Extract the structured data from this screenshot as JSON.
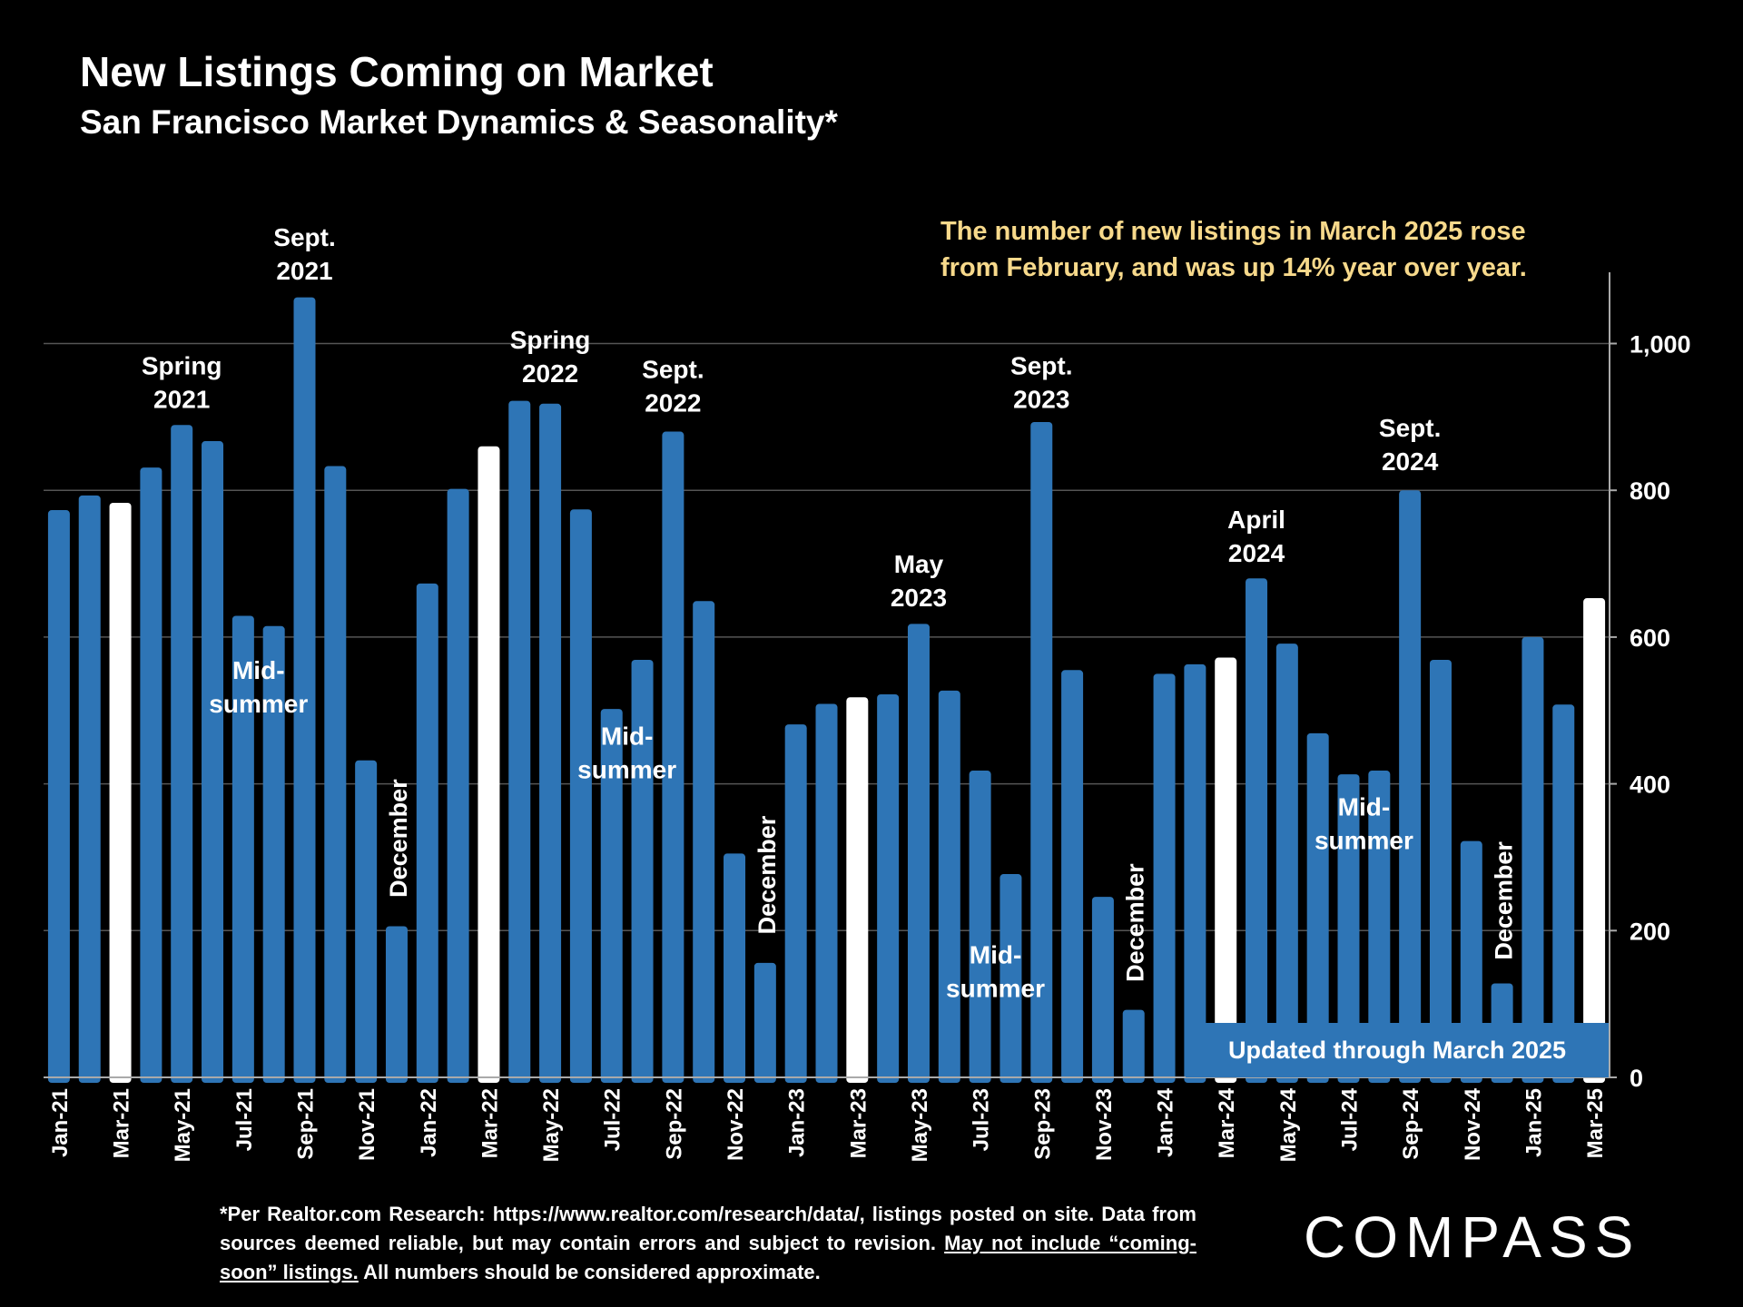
{
  "header": {
    "title": "New Listings Coming on Market",
    "subtitle": "San Francisco Market Dynamics & Seasonality*"
  },
  "footnote": {
    "part1": "*Per Realtor.com Research:  https://www.realtor.com/research/data/, listings posted on site. Data from sources deemed reliable, but may contain errors and subject to revision. ",
    "underlined": "May not include “coming-soon” listings.",
    "part2": " All numbers should be considered approximate."
  },
  "logo": "COMPASS",
  "colors": {
    "bar": "#2e75b6",
    "highlight_bar": "#ffffff",
    "callout_text": "#f7d98b",
    "grid": "#555555",
    "badge": "#2e75b6"
  },
  "chart_data": {
    "type": "bar",
    "categories": [
      "Jan-21",
      "Feb-21",
      "Mar-21",
      "Apr-21",
      "May-21",
      "Jun-21",
      "Jul-21",
      "Aug-21",
      "Sep-21",
      "Oct-21",
      "Nov-21",
      "Dec-21",
      "Jan-22",
      "Feb-22",
      "Mar-22",
      "Apr-22",
      "May-22",
      "Jun-22",
      "Jul-22",
      "Aug-22",
      "Sep-22",
      "Oct-22",
      "Nov-22",
      "Dec-22",
      "Jan-23",
      "Feb-23",
      "Mar-23",
      "Apr-23",
      "May-23",
      "Jun-23",
      "Jul-23",
      "Aug-23",
      "Sep-23",
      "Oct-23",
      "Nov-23",
      "Dec-23",
      "Jan-24",
      "Feb-24",
      "Mar-24",
      "Apr-24",
      "May-24",
      "Jun-24",
      "Jul-24",
      "Aug-24",
      "Sep-24",
      "Oct-24",
      "Nov-24",
      "Dec-24",
      "Jan-25",
      "Feb-25",
      "Mar-25"
    ],
    "values": [
      773,
      793,
      783,
      831,
      889,
      867,
      629,
      615,
      1063,
      833,
      432,
      206,
      673,
      802,
      860,
      922,
      918,
      774,
      502,
      569,
      880,
      649,
      305,
      156,
      481,
      509,
      518,
      522,
      618,
      527,
      418,
      277,
      893,
      555,
      246,
      92,
      550,
      563,
      572,
      680,
      591,
      469,
      413,
      418,
      800,
      569,
      322,
      128,
      600,
      508,
      653
    ],
    "highlight_indices": [
      2,
      14,
      26,
      38,
      50
    ],
    "tick_labels": [
      "Jan-21",
      "Mar-21",
      "May-21",
      "Jul-21",
      "Sep-21",
      "Nov-21",
      "Jan-22",
      "Mar-22",
      "May-22",
      "Jul-22",
      "Sep-22",
      "Nov-22",
      "Jan-23",
      "Mar-23",
      "May-23",
      "Jul-23",
      "Sep-23",
      "Nov-23",
      "Jan-24",
      "Mar-24",
      "May-24",
      "Jul-24",
      "Sep-24",
      "Nov-24",
      "Jan-25",
      "Mar-25"
    ],
    "y_ticks": [
      {
        "value": 0,
        "label": "0"
      },
      {
        "value": 200,
        "label": "200"
      },
      {
        "value": 400,
        "label": "400"
      },
      {
        "value": 600,
        "label": "600"
      },
      {
        "value": 800,
        "label": "800"
      },
      {
        "value": 1000,
        "label": "1,000"
      }
    ],
    "ylim": [
      0,
      1100
    ],
    "y_axis_side": "right",
    "grid": true,
    "annotations": [
      {
        "lines": [
          "Spring",
          "2021"
        ],
        "at": 4,
        "value": 958
      },
      {
        "lines": [
          "Sept.",
          "2021"
        ],
        "at": 8,
        "value": 1133
      },
      {
        "lines": [
          "Mid-",
          "summer"
        ],
        "at": 6.5,
        "value": 543
      },
      {
        "lines": [
          "December"
        ],
        "at": 11,
        "value": 245,
        "vertical": true
      },
      {
        "lines": [
          "Spring",
          "2022"
        ],
        "at": 16,
        "value": 993
      },
      {
        "lines": [
          "Sept.",
          "2022"
        ],
        "at": 20,
        "value": 953
      },
      {
        "lines": [
          "Mid-",
          "summer"
        ],
        "at": 18.5,
        "value": 453
      },
      {
        "lines": [
          "December"
        ],
        "at": 23,
        "value": 195,
        "vertical": true
      },
      {
        "lines": [
          "May",
          "2023"
        ],
        "at": 28,
        "value": 688
      },
      {
        "lines": [
          "Sept.",
          "2023"
        ],
        "at": 32,
        "value": 958
      },
      {
        "lines": [
          "Mid-",
          "summer"
        ],
        "at": 30.5,
        "value": 155
      },
      {
        "lines": [
          "December"
        ],
        "at": 35,
        "value": 130,
        "vertical": true
      },
      {
        "lines": [
          "April",
          "2024"
        ],
        "at": 39,
        "value": 748
      },
      {
        "lines": [
          "Sept.",
          "2024"
        ],
        "at": 44,
        "value": 873
      },
      {
        "lines": [
          "Mid-",
          "summer"
        ],
        "at": 42.5,
        "value": 357
      },
      {
        "lines": [
          "December"
        ],
        "at": 47,
        "value": 160,
        "vertical": true
      }
    ],
    "callout": [
      "The number of new listings in March 2025 rose",
      "from February, and was up 14% year over year."
    ],
    "badge": "Updated through March 2025"
  }
}
